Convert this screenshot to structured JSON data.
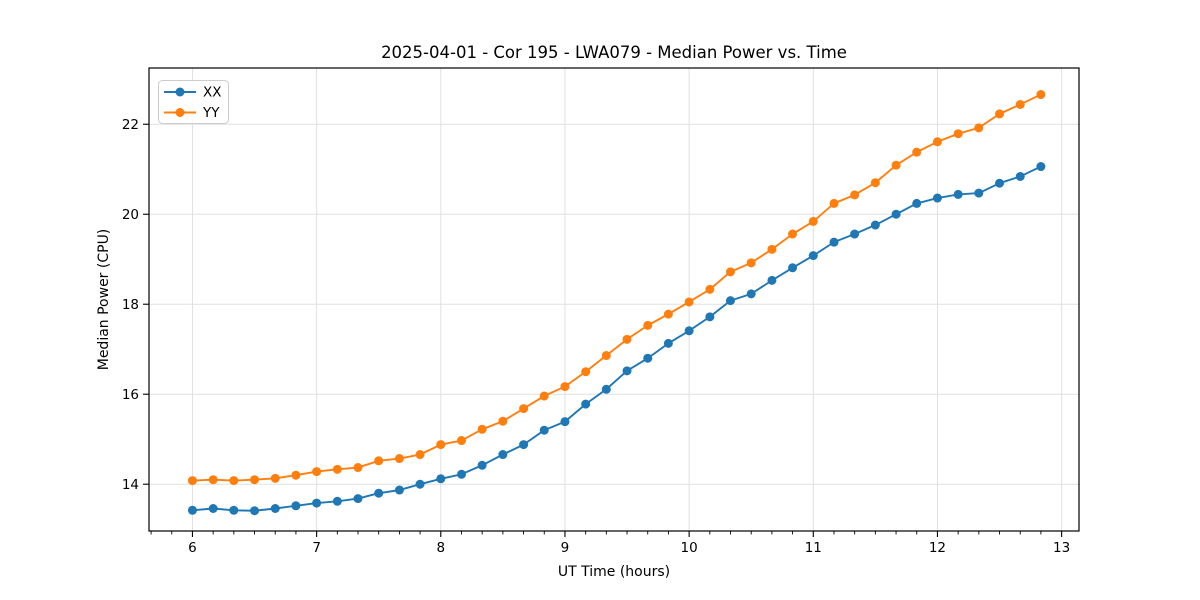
{
  "chart_data": {
    "type": "line",
    "title": "2025-04-01 - Cor 195 - LWA079 - Median Power vs. Time",
    "xlabel": "UT Time (hours)",
    "ylabel": "Median Power (CPU)",
    "xlim": [
      5.65,
      13.14
    ],
    "ylim": [
      12.96,
      23.25
    ],
    "xticks": [
      6,
      7,
      8,
      9,
      10,
      11,
      12,
      13
    ],
    "yticks": [
      14,
      16,
      18,
      20,
      22
    ],
    "x_minor_step_hours": 0.1667,
    "grid": true,
    "legend_position": "upper left",
    "background_color": "#ffffff",
    "grid_color": "#e0e0e0",
    "x": [
      6.0,
      6.167,
      6.333,
      6.5,
      6.667,
      6.833,
      7.0,
      7.167,
      7.333,
      7.5,
      7.667,
      7.833,
      8.0,
      8.167,
      8.333,
      8.5,
      8.667,
      8.833,
      9.0,
      9.167,
      9.333,
      9.5,
      9.667,
      9.833,
      10.0,
      10.167,
      10.333,
      10.5,
      10.667,
      10.833,
      11.0,
      11.167,
      11.333,
      11.5,
      11.667,
      11.833,
      12.0,
      12.167,
      12.333,
      12.5,
      12.667,
      12.833
    ],
    "series": [
      {
        "name": "XX",
        "color": "#1f77b4",
        "marker": "circle",
        "values": [
          13.42,
          13.46,
          13.42,
          13.41,
          13.46,
          13.52,
          13.58,
          13.62,
          13.68,
          13.8,
          13.87,
          14.0,
          14.12,
          14.22,
          14.42,
          14.66,
          14.88,
          15.2,
          15.39,
          15.78,
          16.11,
          16.52,
          16.8,
          17.13,
          17.41,
          17.72,
          18.08,
          18.23,
          18.53,
          18.81,
          19.08,
          19.38,
          19.56,
          19.76,
          20.0,
          20.24,
          20.36,
          20.44,
          20.47,
          20.69,
          20.84,
          21.06
        ]
      },
      {
        "name": "YY",
        "color": "#ff7f0e",
        "marker": "circle",
        "values": [
          14.08,
          14.1,
          14.08,
          14.1,
          14.13,
          14.2,
          14.28,
          14.33,
          14.37,
          14.52,
          14.57,
          14.66,
          14.88,
          14.97,
          15.22,
          15.4,
          15.68,
          15.96,
          16.17,
          16.5,
          16.86,
          17.22,
          17.53,
          17.78,
          18.05,
          18.33,
          18.72,
          18.92,
          19.22,
          19.56,
          19.84,
          20.24,
          20.43,
          20.7,
          21.09,
          21.38,
          21.61,
          21.79,
          21.92,
          22.23,
          22.44,
          22.66
        ]
      }
    ]
  }
}
